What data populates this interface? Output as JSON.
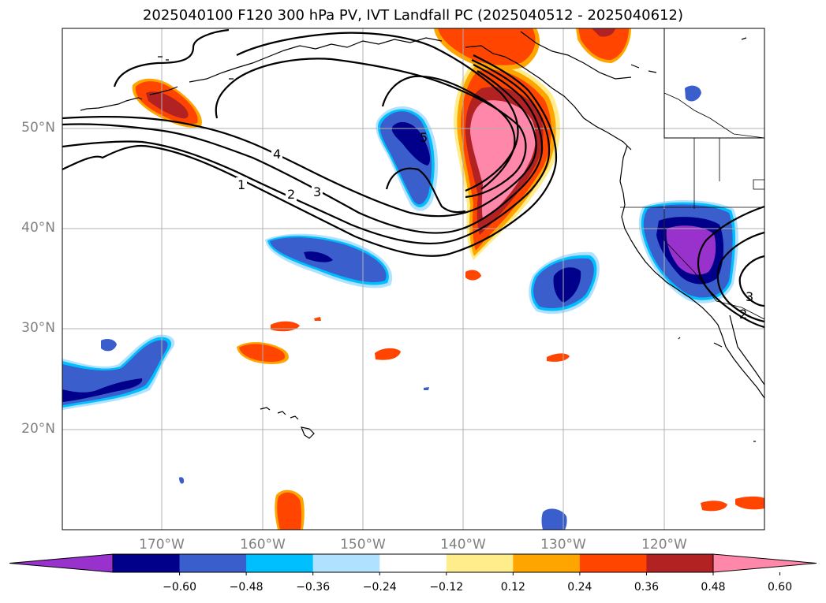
{
  "title": "2025040100 F120 300 hPa PV, IVT Landfall PC (2025040512 - 2025040612)",
  "lat_labels": [
    "50°N",
    "40°N",
    "30°N",
    "20°N"
  ],
  "lon_labels": [
    "170°W",
    "160°W",
    "150°W",
    "140°W",
    "130°W",
    "120°W"
  ],
  "colorbar": {
    "ticks": [
      "−0.60",
      "−0.48",
      "−0.36",
      "−0.24",
      "−0.12",
      "0.12",
      "0.24",
      "0.36",
      "0.48",
      "0.60"
    ],
    "colors": [
      "#9932cc",
      "#00008b",
      "#3a5fcd",
      "#00bfff",
      "#b0e2ff",
      "#ffffff",
      "#ffec8b",
      "#ffa500",
      "#ff4500",
      "#b22222",
      "#ff88aa"
    ]
  },
  "contour_labels": [
    "1",
    "2",
    "3",
    "4",
    "5",
    "2",
    "3"
  ],
  "colors": {
    "land_line": "#000000",
    "grid": "#b0b0b0",
    "tick_label": "#808080"
  }
}
